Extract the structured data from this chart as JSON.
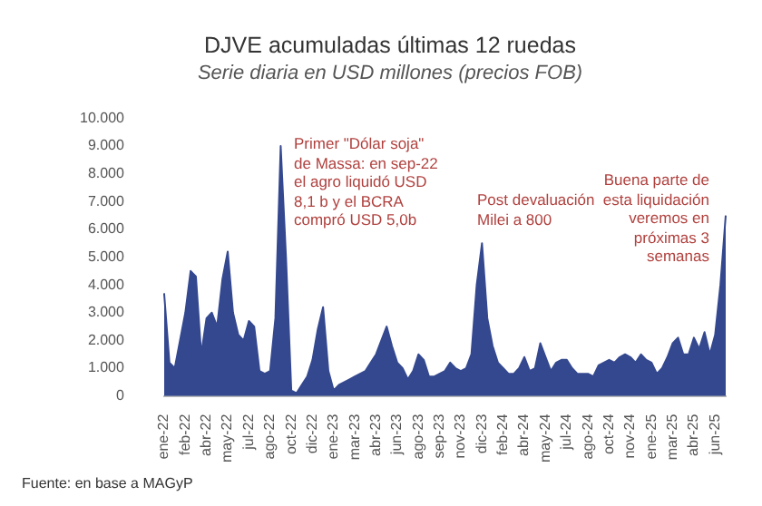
{
  "chart_data": {
    "type": "area",
    "title": "DJVE acumuladas últimas 12 ruedas",
    "subtitle": "Serie diaria en USD millones (precios FOB)",
    "categories": [
      "ene-22",
      null,
      null,
      null,
      "feb-22",
      null,
      null,
      null,
      "abr-22",
      null,
      null,
      null,
      "may-22",
      null,
      null,
      null,
      "jul-22",
      null,
      null,
      null,
      "ago-22",
      null,
      null,
      null,
      "oct-22",
      null,
      null,
      null,
      "dic-22",
      null,
      null,
      null,
      "ene-23",
      null,
      null,
      null,
      "mar-23",
      null,
      null,
      null,
      "abr-23",
      null,
      null,
      null,
      "jun-23",
      null,
      null,
      null,
      "ago-23",
      null,
      null,
      null,
      "sep-23",
      null,
      null,
      null,
      "nov-23",
      null,
      null,
      null,
      "dic-23",
      null,
      null,
      null,
      "feb-24",
      null,
      null,
      null,
      "abr-24",
      null,
      null,
      null,
      "may-24",
      null,
      null,
      null,
      "jul-24",
      null,
      null,
      null,
      "ago-24",
      null,
      null,
      null,
      "oct-24",
      null,
      null,
      null,
      "nov-24",
      null,
      null,
      null,
      "ene-25",
      null,
      null,
      null,
      "mar-25",
      null,
      null,
      null,
      "abr-25",
      null,
      null,
      null,
      "jun-25",
      null,
      null
    ],
    "series": [
      {
        "color": "#34488f",
        "values": [
          3700,
          1200,
          1000,
          2000,
          3000,
          4500,
          4300,
          1500,
          2800,
          3000,
          2500,
          4200,
          5200,
          3000,
          2200,
          2000,
          2700,
          2500,
          900,
          800,
          900,
          2800,
          9000,
          5000,
          200,
          100,
          400,
          700,
          1300,
          2400,
          3200,
          900,
          200,
          400,
          500,
          600,
          700,
          800,
          900,
          1200,
          1500,
          2000,
          2500,
          1800,
          1200,
          1000,
          600,
          900,
          1500,
          1300,
          700,
          700,
          800,
          900,
          1200,
          1000,
          900,
          1000,
          1500,
          4000,
          5500,
          2800,
          1800,
          1200,
          1000,
          800,
          800,
          1000,
          1400,
          900,
          1000,
          1900,
          1400,
          900,
          1200,
          1300,
          1300,
          1000,
          800,
          800,
          800,
          700,
          1100,
          1200,
          1300,
          1200,
          1400,
          1500,
          1400,
          1200,
          1500,
          1300,
          1200,
          800,
          1000,
          1400,
          1900,
          2100,
          1500,
          1500,
          2100,
          1700,
          2300,
          1500,
          2200,
          4000,
          6500
        ]
      }
    ],
    "ylim": [
      0,
      10000
    ],
    "yticks": [
      0,
      {
        "value": 1000,
        "label": "1.000"
      },
      {
        "value": 2000,
        "label": "2.000"
      },
      {
        "value": 3000,
        "label": "3.000"
      },
      {
        "value": 4000,
        "label": "4.000"
      },
      {
        "value": 5000,
        "label": "5.000"
      },
      {
        "value": 6000,
        "label": "6.000"
      },
      {
        "value": 7000,
        "label": "7.000"
      },
      {
        "value": 8000,
        "label": "8.000"
      },
      {
        "value": 9000,
        "label": "9.000"
      },
      {
        "value": 10000,
        "label": "10.000"
      }
    ],
    "annotations": [
      "Primer \"Dólar soja\" de Massa: en sep-22 el agro liquidó USD 8,1 b y el BCRA compró USD 5,0b",
      "Post devaluación Milei a 800",
      "Buena parte de esta liquidación veremos en próximas 3 semanas",
      "Fuente: en base a MAGyP"
    ]
  }
}
